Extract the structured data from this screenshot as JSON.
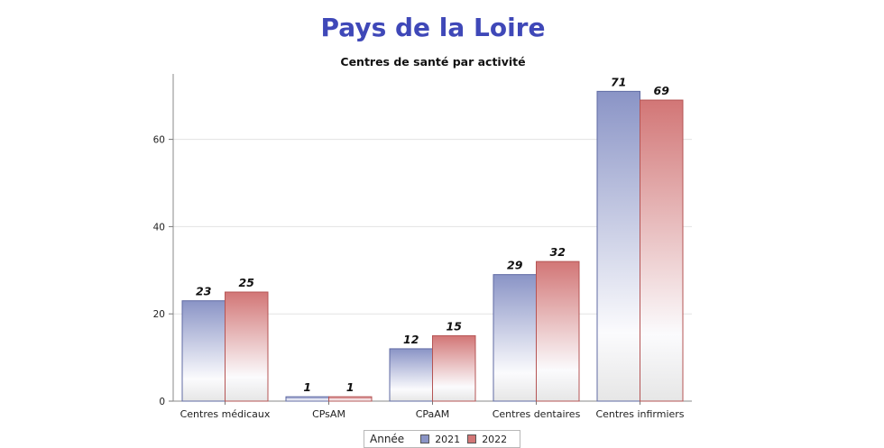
{
  "title": "Pays de la Loire",
  "subtitle": "Centres de santé par activité",
  "colors": {
    "title": "#3f48b8",
    "s2021": "#8a94c6",
    "s2022": "#d27676"
  },
  "chart_data": {
    "type": "bar",
    "title": "Centres de santé par activité",
    "categories": [
      "Centres médicaux",
      "CPsAM",
      "CPaAM",
      "Centres dentaires",
      "Centres infirmiers"
    ],
    "series": [
      {
        "name": "2021",
        "values": [
          23,
          1,
          12,
          29,
          71
        ]
      },
      {
        "name": "2022",
        "values": [
          25,
          1,
          15,
          32,
          69
        ]
      }
    ],
    "yticks": [
      0,
      20,
      40,
      60
    ],
    "ylim": [
      0,
      75
    ],
    "grid": true,
    "legend": {
      "title": "Année",
      "placement": "bottom"
    }
  }
}
